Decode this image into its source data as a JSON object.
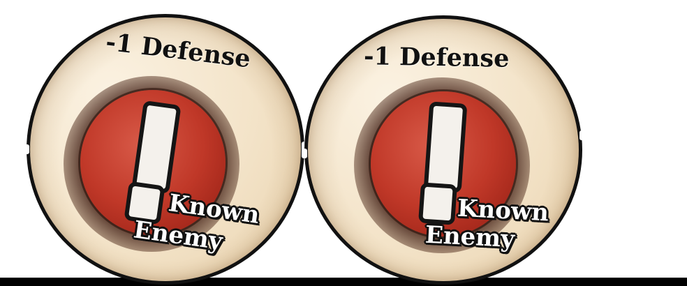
{
  "tokens": [
    {
      "top_label": "-1 Defense",
      "bottom_label_1": "Known",
      "bottom_label_2": "Enemy",
      "icon": "exclamation-icon"
    },
    {
      "top_label": "-1 Defense",
      "bottom_label_1": "Known",
      "bottom_label_2": "Enemy",
      "icon": "exclamation-icon"
    }
  ],
  "colors": {
    "token_background": "#f3e3c8",
    "token_border": "#111111",
    "emblem_red": "#c03828",
    "mark_white": "#f4f1ec",
    "floor": "#000000"
  }
}
